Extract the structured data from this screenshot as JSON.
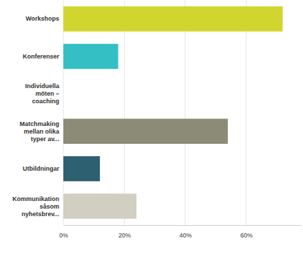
{
  "chart_data": {
    "type": "bar",
    "orientation": "horizontal",
    "categories": [
      "Workshops",
      "Konferenser",
      "Individuella möten – coaching",
      "Matchmaking mellan olika typer av...",
      "Utbildningar",
      "Kommunikation såsom nyhetsbrev..."
    ],
    "values": [
      72,
      18,
      0,
      54,
      12,
      24
    ],
    "colors": [
      "#d3d52f",
      "#34bfc4",
      "#f2a33a",
      "#8b8b78",
      "#2d6070",
      "#d1cfc2"
    ],
    "xlim": [
      0,
      78
    ],
    "xticks": [
      {
        "value": 0,
        "label": "0%"
      },
      {
        "value": 20,
        "label": "20%"
      },
      {
        "value": 40,
        "label": "40%"
      },
      {
        "value": 60,
        "label": "60%"
      }
    ],
    "grid": true
  }
}
